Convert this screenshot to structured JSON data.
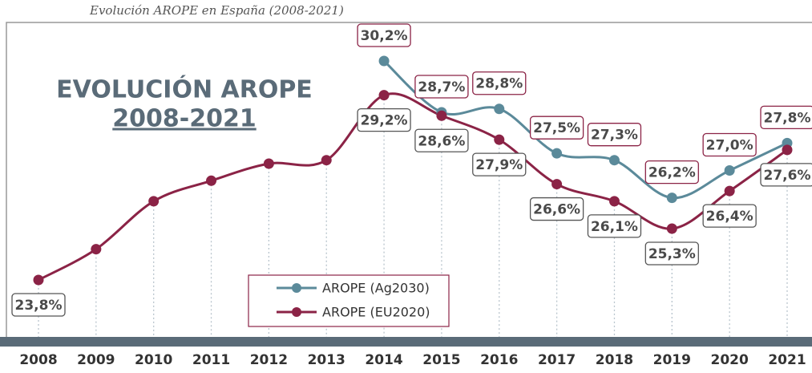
{
  "chart_data": {
    "type": "line",
    "title": "Evolución AROPE en España (2008-2021)",
    "heading": [
      "EVOLUCIÓN AROPE",
      "2008-2021"
    ],
    "categories": [
      "2008",
      "2009",
      "2010",
      "2011",
      "2012",
      "2013",
      "2014",
      "2015",
      "2016",
      "2017",
      "2018",
      "2019",
      "2020",
      "2021"
    ],
    "series": [
      {
        "name": "AROPE (Ag2030)",
        "color": "#5b8a9a",
        "values": [
          null,
          null,
          null,
          null,
          null,
          null,
          30.2,
          28.7,
          28.8,
          27.5,
          27.3,
          26.2,
          27.0,
          27.8
        ],
        "value_labels": [
          null,
          null,
          null,
          null,
          null,
          null,
          "30,2%",
          "28,7%",
          "28,8%",
          "27,5%",
          "27,3%",
          "26,2%",
          "27,0%",
          "27,8%"
        ]
      },
      {
        "name": "AROPE (EU2020)",
        "color": "#8b2346",
        "values": [
          23.8,
          24.7,
          26.1,
          26.7,
          27.2,
          27.3,
          29.2,
          28.6,
          27.9,
          26.6,
          26.1,
          25.3,
          26.4,
          27.6
        ],
        "value_labels": [
          "23,8%",
          null,
          null,
          null,
          null,
          null,
          "29,2%",
          "28,6%",
          "27,9%",
          "26,6%",
          "26,1%",
          "25,3%",
          "26,4%",
          "27,6%"
        ]
      }
    ],
    "legend": "bottom-center"
  }
}
